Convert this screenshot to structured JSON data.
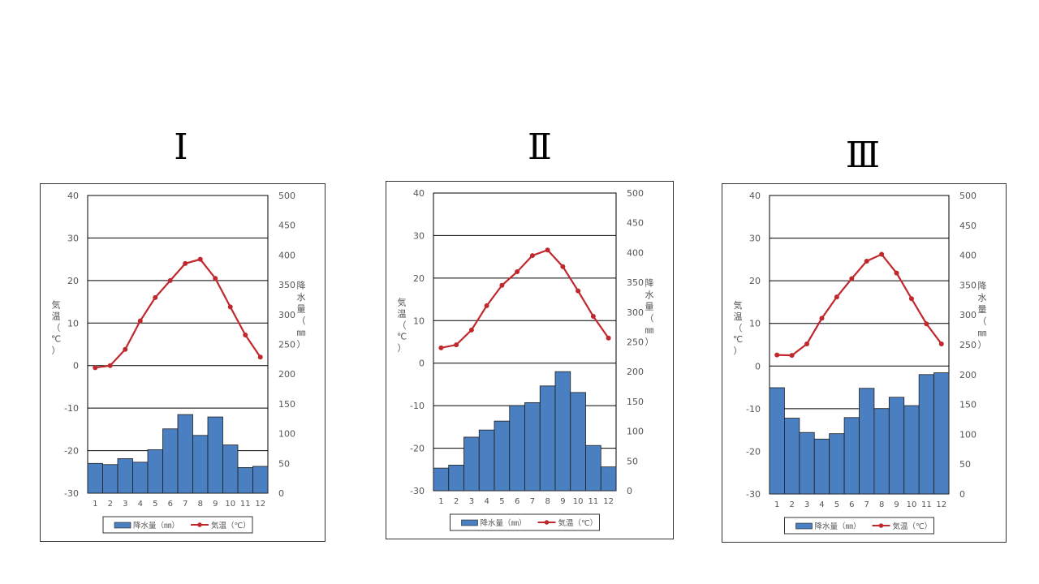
{
  "colors": {
    "bar": "#4a7fc1",
    "bar_stroke": "#1f1f1f",
    "line": "#c0282e",
    "grid": "#000000",
    "text": "#555555"
  },
  "legend": {
    "precip": "降水量（㎜）",
    "temp": "気温（℃）"
  },
  "axis_labels": {
    "left": [
      "気",
      "温",
      "（",
      "℃",
      "）"
    ],
    "right": [
      "降",
      "水",
      "量",
      "（",
      "㎜",
      "）"
    ]
  },
  "chart_data": [
    {
      "type": "bar+line",
      "title": "Ⅰ",
      "categories": [
        "1",
        "2",
        "3",
        "4",
        "5",
        "6",
        "7",
        "8",
        "9",
        "10",
        "11",
        "12"
      ],
      "y_left": {
        "ticks": [
          40,
          30,
          20,
          10,
          0,
          -10,
          -20,
          -30
        ],
        "range": [
          -30,
          40
        ]
      },
      "y_right": {
        "ticks": [
          500,
          450,
          400,
          350,
          300,
          250,
          200,
          150,
          100,
          50,
          0
        ],
        "range": [
          0,
          500
        ]
      },
      "series": [
        {
          "name": "降水量（㎜）",
          "type": "bar",
          "axis": "right",
          "values": [
            50,
            48,
            58,
            52,
            73,
            108,
            132,
            97,
            128,
            81,
            43,
            45
          ]
        },
        {
          "name": "気温（℃）",
          "type": "line",
          "axis": "left",
          "values": [
            -0.5,
            0.0,
            3.8,
            10.5,
            16.0,
            20.0,
            24.0,
            25.0,
            20.5,
            13.8,
            7.2,
            2.0
          ]
        }
      ]
    },
    {
      "type": "bar+line",
      "title": "Ⅱ",
      "categories": [
        "1",
        "2",
        "3",
        "4",
        "5",
        "6",
        "7",
        "8",
        "9",
        "10",
        "11",
        "12"
      ],
      "y_left": {
        "ticks": [
          40,
          30,
          20,
          10,
          0,
          -10,
          -20,
          -30
        ],
        "range": [
          -30,
          40
        ]
      },
      "y_right": {
        "ticks": [
          500,
          450,
          400,
          350,
          300,
          250,
          200,
          150,
          100,
          50,
          0
        ],
        "range": [
          0,
          500
        ]
      },
      "series": [
        {
          "name": "降水量（㎜）",
          "type": "bar",
          "axis": "right",
          "values": [
            38,
            43,
            90,
            102,
            117,
            143,
            148,
            176,
            200,
            165,
            76,
            40
          ]
        },
        {
          "name": "気温（℃）",
          "type": "line",
          "axis": "left",
          "values": [
            3.6,
            4.3,
            7.8,
            13.5,
            18.3,
            21.5,
            25.3,
            26.6,
            22.7,
            17.0,
            11.0,
            5.9
          ]
        }
      ]
    },
    {
      "type": "bar+line",
      "title": "Ⅲ",
      "categories": [
        "1",
        "2",
        "3",
        "4",
        "5",
        "6",
        "7",
        "8",
        "9",
        "10",
        "11",
        "12"
      ],
      "y_left": {
        "ticks": [
          40,
          30,
          20,
          10,
          0,
          -10,
          -20,
          -30
        ],
        "range": [
          -30,
          40
        ]
      },
      "y_right": {
        "ticks": [
          500,
          450,
          400,
          350,
          300,
          250,
          200,
          150,
          100,
          50,
          0
        ],
        "range": [
          0,
          500
        ]
      },
      "series": [
        {
          "name": "降水量（㎜）",
          "type": "bar",
          "axis": "right",
          "values": [
            178,
            127,
            103,
            92,
            101,
            128,
            177,
            143,
            162,
            148,
            200,
            203
          ]
        },
        {
          "name": "気温（℃）",
          "type": "line",
          "axis": "left",
          "values": [
            2.6,
            2.5,
            5.2,
            11.2,
            16.2,
            20.5,
            24.6,
            26.2,
            21.8,
            15.8,
            9.9,
            5.2
          ]
        }
      ]
    }
  ]
}
